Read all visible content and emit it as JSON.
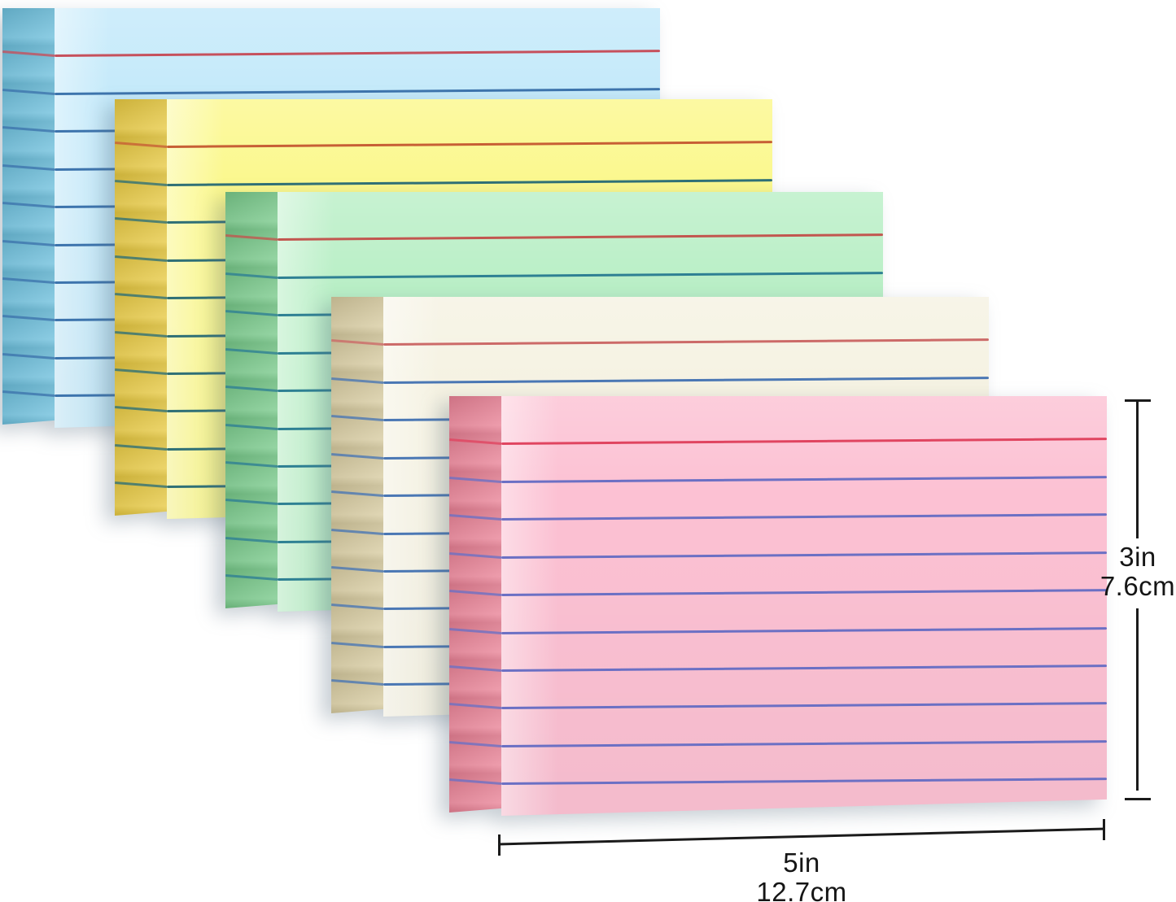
{
  "title": "Five stacks of ruled index cards with size annotations",
  "background_color": "#ffffff",
  "cards": [
    {
      "name": "blue",
      "face_color": "#c3e9fa",
      "edge_color": "#6dbfdc",
      "rule_color": "#3d74ad",
      "margin_rule_color": "#c6505c",
      "rule_count": 9
    },
    {
      "name": "yellow",
      "face_color": "#fbf88b",
      "edge_color": "#e7c942",
      "rule_color": "#2f7076",
      "margin_rule_color": "#c75f35",
      "rule_count": 9
    },
    {
      "name": "green",
      "face_color": "#b9efc6",
      "edge_color": "#78c98a",
      "rule_color": "#2e8093",
      "margin_rule_color": "#c2564f",
      "rule_count": 9
    },
    {
      "name": "cream",
      "face_color": "#f5f2e2",
      "edge_color": "#d7cba0",
      "rule_color": "#4a77b4",
      "margin_rule_color": "#cc6a68",
      "rule_count": 9
    },
    {
      "name": "pink",
      "face_color": "#fcc1d3",
      "edge_color": "#e98296",
      "rule_color": "#6b70c4",
      "margin_rule_color": "#e04560",
      "rule_count": 9
    }
  ],
  "annotations": {
    "line_color": "#1b1b1b",
    "text_color": "#151515",
    "height": {
      "inches": "3in",
      "metric": "7.6cm"
    },
    "width": {
      "inches": "5in",
      "metric": "12.7cm"
    }
  }
}
